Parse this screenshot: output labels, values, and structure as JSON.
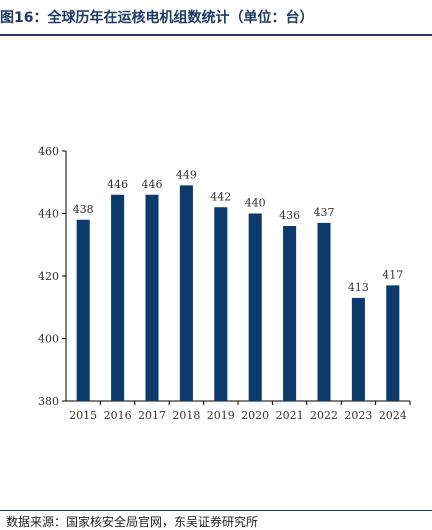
{
  "figure": {
    "title": "图16：全球历年在运核电机组数统计（单位：台）",
    "source": "数据来源：国家核安全局官网，东吴证券研究所"
  },
  "colors": {
    "bar": "#0b3a6b",
    "title": "#1f3864",
    "axis": "#000000"
  },
  "chart_data": {
    "type": "bar",
    "title": "",
    "xlabel": "",
    "ylabel": "",
    "categories": [
      "2015",
      "2016",
      "2017",
      "2018",
      "2019",
      "2020",
      "2021",
      "2022",
      "2023",
      "2024"
    ],
    "series": [
      {
        "values": [
          438,
          446,
          446,
          449,
          442,
          440,
          436,
          437,
          413,
          417
        ]
      }
    ],
    "ylim": [
      380,
      460
    ],
    "yticks": [
      380,
      400,
      420,
      440,
      460
    ],
    "grid": false,
    "legend": "none",
    "data_labels": true
  }
}
